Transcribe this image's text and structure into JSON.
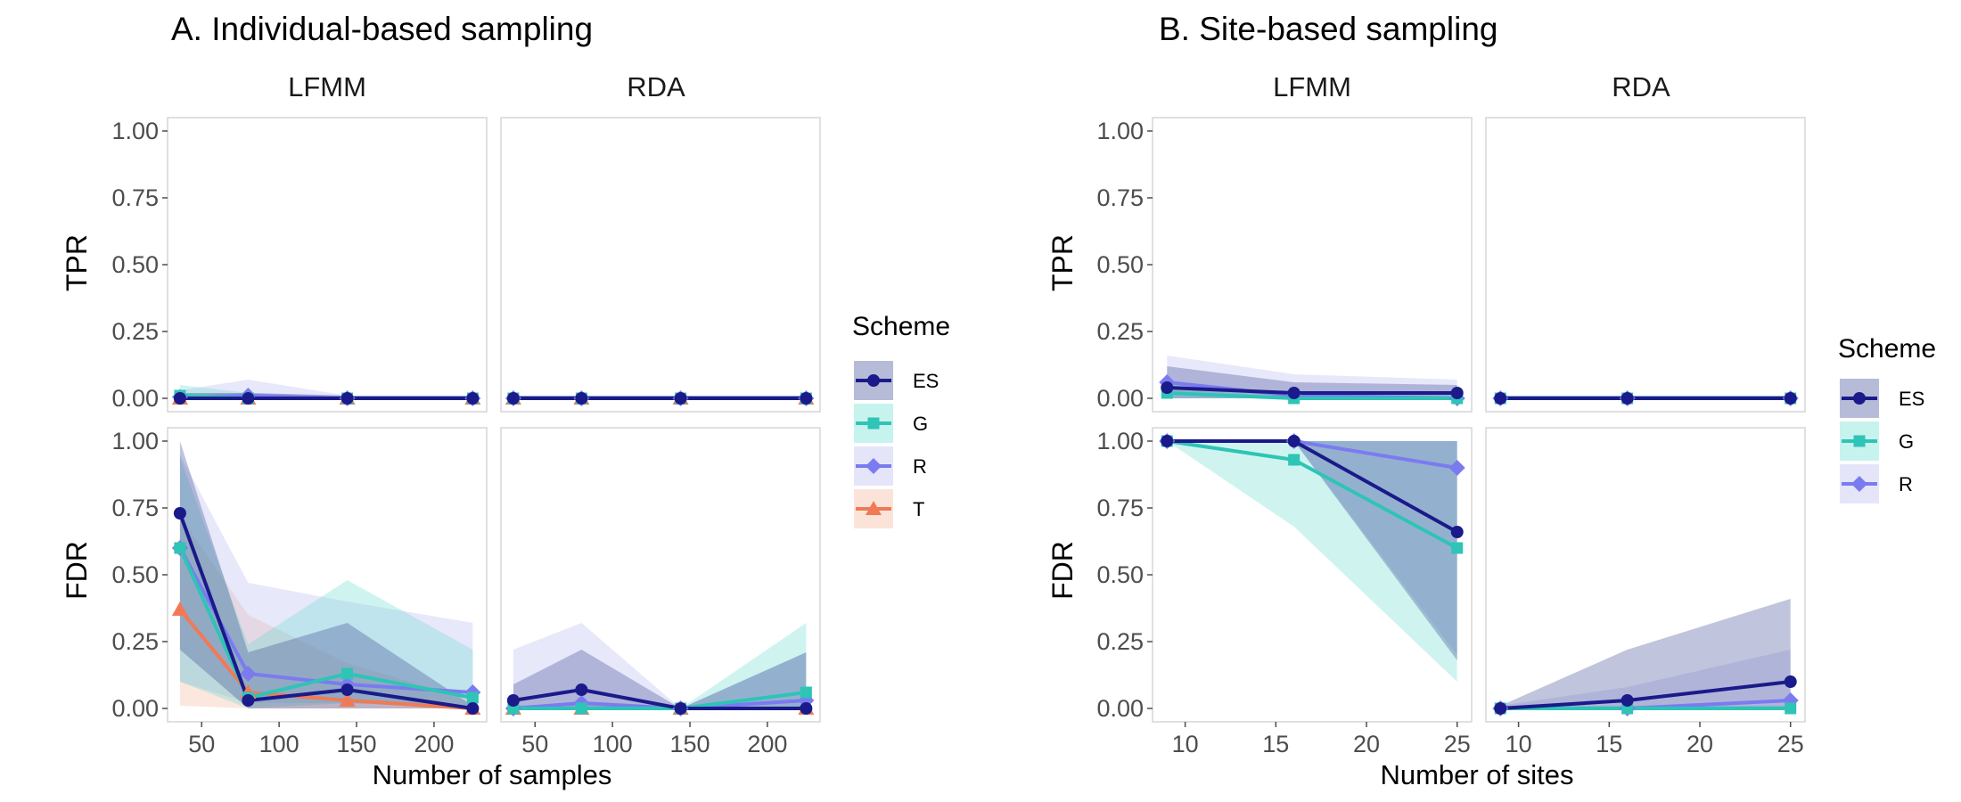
{
  "colors": {
    "ES": "#1a1a8a",
    "G": "#2ec4b6",
    "R": "#7b7bf0",
    "T": "#f07a55",
    "ES_band": "#2d3d8c",
    "G_band": "#5fdccd",
    "R_band": "#b4b4f2",
    "T_band": "#f5b095",
    "panel_border": "#d6d6d6",
    "tick": "#4d4d4d"
  },
  "chart_data": [
    {
      "id": "A",
      "type": "line",
      "title": "A. Individual-based sampling",
      "xlabel": "Number of samples",
      "facet_columns": [
        "LFMM",
        "RDA"
      ],
      "facet_rows": [
        "TPR",
        "FDR"
      ],
      "legend": {
        "title": "Scheme",
        "entries": [
          "ES",
          "G",
          "R",
          "T"
        ],
        "placement": "right"
      },
      "x_ticks": [
        50,
        100,
        150,
        200
      ],
      "xlim": [
        28,
        234
      ],
      "y_ticks": [
        "0.00",
        "0.25",
        "0.50",
        "0.75",
        "1.00"
      ],
      "ylim": [
        -0.05,
        1.05
      ],
      "grid": false,
      "panels": [
        {
          "column": "LFMM",
          "row": "TPR",
          "series": [
            {
              "name": "T",
              "x": [
                36,
                80,
                144,
                225
              ],
              "y": [
                0.0,
                0.0,
                0.0,
                0.0
              ],
              "lo": [
                0,
                0,
                0,
                0
              ],
              "hi": [
                0.02,
                0.02,
                0.01,
                0.01
              ]
            },
            {
              "name": "R",
              "x": [
                36,
                80,
                144,
                225
              ],
              "y": [
                0.005,
                0.01,
                0.0,
                0.0
              ],
              "lo": [
                0,
                0,
                0,
                0
              ],
              "hi": [
                0.03,
                0.07,
                0.01,
                0.01
              ]
            },
            {
              "name": "G",
              "x": [
                36,
                80,
                144,
                225
              ],
              "y": [
                0.01,
                0.0,
                0.0,
                0.0
              ],
              "lo": [
                0,
                0,
                0,
                0
              ],
              "hi": [
                0.05,
                0.02,
                0.01,
                0.01
              ]
            },
            {
              "name": "ES",
              "x": [
                36,
                80,
                144,
                225
              ],
              "y": [
                0.0,
                0.0,
                0.0,
                0.0
              ],
              "lo": [
                0,
                0,
                0,
                0
              ],
              "hi": [
                0.02,
                0.02,
                0.01,
                0.01
              ]
            }
          ]
        },
        {
          "column": "RDA",
          "row": "TPR",
          "series": [
            {
              "name": "T",
              "x": [
                36,
                80,
                144,
                225
              ],
              "y": [
                0.0,
                0.0,
                0.0,
                0.0
              ],
              "lo": [
                0,
                0,
                0,
                0
              ],
              "hi": [
                0.01,
                0.01,
                0.01,
                0.01
              ]
            },
            {
              "name": "R",
              "x": [
                36,
                80,
                144,
                225
              ],
              "y": [
                0.0,
                0.0,
                0.0,
                0.0
              ],
              "lo": [
                0,
                0,
                0,
                0
              ],
              "hi": [
                0.01,
                0.01,
                0.01,
                0.01
              ]
            },
            {
              "name": "G",
              "x": [
                36,
                80,
                144,
                225
              ],
              "y": [
                0.0,
                0.0,
                0.0,
                0.0
              ],
              "lo": [
                0,
                0,
                0,
                0
              ],
              "hi": [
                0.01,
                0.01,
                0.01,
                0.01
              ]
            },
            {
              "name": "ES",
              "x": [
                36,
                80,
                144,
                225
              ],
              "y": [
                0.0,
                0.0,
                0.0,
                0.0
              ],
              "lo": [
                0,
                0,
                0,
                0
              ],
              "hi": [
                0.01,
                0.01,
                0.01,
                0.01
              ]
            }
          ]
        },
        {
          "column": "LFMM",
          "row": "FDR",
          "series": [
            {
              "name": "T",
              "x": [
                36,
                80,
                144,
                225
              ],
              "y": [
                0.37,
                0.06,
                0.03,
                0.0
              ],
              "lo": [
                0.01,
                0.0,
                0.0,
                0.0
              ],
              "hi": [
                0.72,
                0.35,
                0.17,
                0.03
              ]
            },
            {
              "name": "R",
              "x": [
                36,
                80,
                144,
                225
              ],
              "y": [
                0.6,
                0.13,
                0.09,
                0.06
              ],
              "lo": [
                0.1,
                0.02,
                0.02,
                0.01
              ],
              "hi": [
                0.95,
                0.47,
                0.4,
                0.32
              ]
            },
            {
              "name": "G",
              "x": [
                36,
                80,
                144,
                225
              ],
              "y": [
                0.6,
                0.04,
                0.13,
                0.04
              ],
              "lo": [
                0.1,
                0.0,
                0.02,
                0.0
              ],
              "hi": [
                0.94,
                0.24,
                0.48,
                0.22
              ]
            },
            {
              "name": "ES",
              "x": [
                36,
                80,
                144,
                225
              ],
              "y": [
                0.73,
                0.03,
                0.07,
                0.0
              ],
              "lo": [
                0.22,
                0.0,
                0.0,
                0.0
              ],
              "hi": [
                1.0,
                0.21,
                0.32,
                0.01
              ]
            }
          ]
        },
        {
          "column": "RDA",
          "row": "FDR",
          "series": [
            {
              "name": "T",
              "x": [
                36,
                80,
                144,
                225
              ],
              "y": [
                0.0,
                0.0,
                0.0,
                0.0
              ],
              "lo": [
                0,
                0,
                0,
                0
              ],
              "hi": [
                0.01,
                0.01,
                0.01,
                0.01
              ]
            },
            {
              "name": "R",
              "x": [
                36,
                80,
                144,
                225
              ],
              "y": [
                0.0,
                0.02,
                0.0,
                0.03
              ],
              "lo": [
                0,
                0,
                0,
                0
              ],
              "hi": [
                0.22,
                0.32,
                0.0,
                0.21
              ]
            },
            {
              "name": "G",
              "x": [
                36,
                80,
                144,
                225
              ],
              "y": [
                0.0,
                0.0,
                0.0,
                0.06
              ],
              "lo": [
                0,
                0,
                0,
                0
              ],
              "hi": [
                0.01,
                0.02,
                0.0,
                0.32
              ]
            },
            {
              "name": "ES",
              "x": [
                36,
                80,
                144,
                225
              ],
              "y": [
                0.03,
                0.07,
                0.0,
                0.0
              ],
              "lo": [
                0,
                0,
                0,
                0
              ],
              "hi": [
                0.09,
                0.22,
                0.0,
                0.21
              ]
            }
          ]
        }
      ]
    },
    {
      "id": "B",
      "type": "line",
      "title": "B. Site-based sampling",
      "xlabel": "Number of sites",
      "facet_columns": [
        "LFMM",
        "RDA"
      ],
      "facet_rows": [
        "TPR",
        "FDR"
      ],
      "legend": {
        "title": "Scheme",
        "entries": [
          "ES",
          "G",
          "R"
        ],
        "placement": "right"
      },
      "x_ticks": [
        10,
        15,
        20,
        25
      ],
      "xlim": [
        8.2,
        25.8
      ],
      "y_ticks": [
        "0.00",
        "0.25",
        "0.50",
        "0.75",
        "1.00"
      ],
      "ylim": [
        -0.05,
        1.05
      ],
      "grid": false,
      "panels": [
        {
          "column": "LFMM",
          "row": "TPR",
          "series": [
            {
              "name": "R",
              "x": [
                9,
                16,
                25
              ],
              "y": [
                0.06,
                0.01,
                0.0
              ],
              "lo": [
                0,
                0,
                0
              ],
              "hi": [
                0.16,
                0.09,
                0.07
              ]
            },
            {
              "name": "G",
              "x": [
                9,
                16,
                25
              ],
              "y": [
                0.02,
                0.0,
                0.0
              ],
              "lo": [
                0,
                0,
                0
              ],
              "hi": [
                0.06,
                0.02,
                0.02
              ]
            },
            {
              "name": "ES",
              "x": [
                9,
                16,
                25
              ],
              "y": [
                0.04,
                0.02,
                0.02
              ],
              "lo": [
                0,
                0,
                0
              ],
              "hi": [
                0.12,
                0.06,
                0.05
              ]
            }
          ]
        },
        {
          "column": "RDA",
          "row": "TPR",
          "series": [
            {
              "name": "R",
              "x": [
                9,
                16,
                25
              ],
              "y": [
                0.0,
                0.0,
                0.0
              ],
              "lo": [
                0,
                0,
                0
              ],
              "hi": [
                0.01,
                0.01,
                0.01
              ]
            },
            {
              "name": "G",
              "x": [
                9,
                16,
                25
              ],
              "y": [
                0.0,
                0.0,
                0.0
              ],
              "lo": [
                0,
                0,
                0
              ],
              "hi": [
                0.01,
                0.01,
                0.01
              ]
            },
            {
              "name": "ES",
              "x": [
                9,
                16,
                25
              ],
              "y": [
                0.0,
                0.0,
                0.0
              ],
              "lo": [
                0,
                0,
                0
              ],
              "hi": [
                0.01,
                0.01,
                0.01
              ]
            }
          ]
        },
        {
          "column": "LFMM",
          "row": "FDR",
          "series": [
            {
              "name": "R",
              "x": [
                9,
                16,
                25
              ],
              "y": [
                1.0,
                1.0,
                0.9
              ],
              "lo": [
                1.0,
                1.0,
                0.2
              ],
              "hi": [
                1.0,
                1.0,
                1.0
              ]
            },
            {
              "name": "G",
              "x": [
                9,
                16,
                25
              ],
              "y": [
                1.0,
                0.93,
                0.6
              ],
              "lo": [
                1.0,
                0.68,
                0.1
              ],
              "hi": [
                1.0,
                1.0,
                1.0
              ]
            },
            {
              "name": "ES",
              "x": [
                9,
                16,
                25
              ],
              "y": [
                1.0,
                1.0,
                0.66
              ],
              "lo": [
                1.0,
                1.0,
                0.18
              ],
              "hi": [
                1.0,
                1.0,
                1.0
              ]
            }
          ]
        },
        {
          "column": "RDA",
          "row": "FDR",
          "series": [
            {
              "name": "R",
              "x": [
                9,
                16,
                25
              ],
              "y": [
                0.0,
                0.0,
                0.03
              ],
              "lo": [
                0,
                0,
                0
              ],
              "hi": [
                0.01,
                0.08,
                0.22
              ]
            },
            {
              "name": "G",
              "x": [
                9,
                16,
                25
              ],
              "y": [
                0.0,
                0.0,
                0.0
              ],
              "lo": [
                0,
                0,
                0
              ],
              "hi": [
                0.01,
                0.01,
                0.01
              ]
            },
            {
              "name": "ES",
              "x": [
                9,
                16,
                25
              ],
              "y": [
                0.0,
                0.03,
                0.1
              ],
              "lo": [
                0,
                0,
                0
              ],
              "hi": [
                0.01,
                0.22,
                0.41
              ]
            }
          ]
        }
      ]
    }
  ]
}
